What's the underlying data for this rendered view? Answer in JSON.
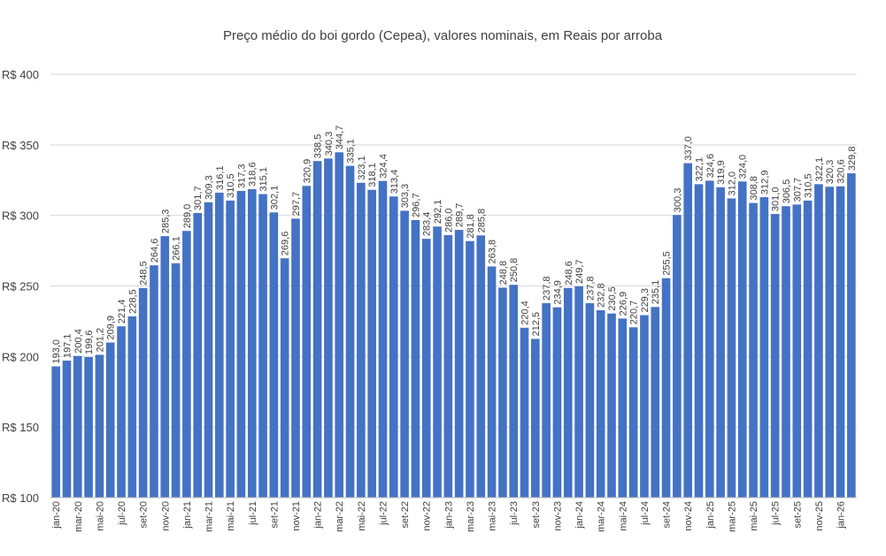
{
  "chart_data": {
    "type": "bar",
    "title": "Preço médio do boi gordo (Cepea), valores nominais, em Reais por arroba",
    "xlabel": "",
    "ylabel": "",
    "ylim": [
      100,
      400
    ],
    "y_ticks": [
      "R$ 100",
      "R$ 150",
      "R$ 200",
      "R$ 250",
      "R$ 300",
      "R$ 350",
      "R$ 400"
    ],
    "y_tick_values": [
      100,
      150,
      200,
      250,
      300,
      350,
      400
    ],
    "grid": "horizontal",
    "legend": "none",
    "bar_color": "#4472c4",
    "categories": [
      "jan-20",
      "fev-20",
      "mar-20",
      "abr-20",
      "mai-20",
      "jun-20",
      "jul-20",
      "ago-20",
      "set-20",
      "out-20",
      "nov-20",
      "dez-20",
      "jan-21",
      "fev-21",
      "mar-21",
      "abr-21",
      "mai-21",
      "jun-21",
      "jul-21",
      "ago-21",
      "set-21",
      "out-21",
      "nov-21",
      "dez-21",
      "jan-22",
      "fev-22",
      "mar-22",
      "abr-22",
      "mai-22",
      "jun-22",
      "jul-22",
      "ago-22",
      "set-22",
      "out-22",
      "nov-22",
      "dez-22",
      "jan-23",
      "fev-23",
      "mar-23",
      "abr-23",
      "mai-23",
      "jun-23",
      "jul-23",
      "ago-23",
      "set-23",
      "out-23",
      "nov-23",
      "dez-23",
      "jan-24",
      "fev-24",
      "mar-24",
      "abr-24",
      "mai-24",
      "jun-24",
      "jul-24",
      "ago-24",
      "set-24",
      "out-24",
      "nov-24",
      "dez-24",
      "jan-25",
      "fev-25",
      "mar-25",
      "abr-25",
      "mai-25",
      "jun-25",
      "jul-25",
      "ago-25",
      "set-25",
      "out-25",
      "nov-25",
      "dez-25",
      "jan-26",
      "fev-26"
    ],
    "visible_x_labels": [
      "jan-20",
      "mar-20",
      "mai-20",
      "jul-20",
      "set-20",
      "nov-20",
      "jan-21",
      "mar-21",
      "mai-21",
      "jul-21",
      "set-21",
      "nov-21",
      "jan-22",
      "mar-22",
      "mai-22",
      "jul-22",
      "set-22",
      "nov-22",
      "jan-23",
      "mar-23",
      "mai-23",
      "jul-23",
      "set-23",
      "nov-23",
      "jan-24",
      "mar-24",
      "mai-24",
      "jul-24",
      "set-24",
      "nov-24",
      "jan-25",
      "mar-25",
      "mai-25",
      "jul-25",
      "set-25",
      "nov-25",
      "jan-26"
    ],
    "values": [
      193.0,
      197.1,
      200.4,
      199.6,
      201.2,
      209.9,
      221.4,
      228.5,
      248.5,
      264.6,
      285.3,
      266.1,
      289.0,
      301.7,
      309.3,
      316.1,
      310.5,
      317.3,
      318.6,
      315.1,
      302.1,
      269.6,
      297.7,
      320.9,
      338.5,
      340.3,
      344.7,
      335.1,
      323.1,
      318.1,
      324.4,
      313.4,
      303.3,
      296.7,
      283.4,
      292.1,
      286.0,
      289.7,
      281.8,
      285.8,
      263.8,
      248.8,
      250.8,
      220.4,
      212.5,
      237.8,
      234.9,
      248.6,
      249.7,
      237.8,
      232.8,
      230.5,
      226.9,
      220.7,
      229.3,
      235.1,
      255.5,
      300.3,
      337.0,
      322.1,
      324.6,
      319.9,
      312.0,
      324.0,
      308.8,
      312.9,
      301.0,
      306.5,
      307.7,
      310.5,
      322.1,
      320.3,
      320.6,
      329.8
    ],
    "data_labels": [
      "193,0",
      "197,1",
      "200,4",
      "199,6",
      "201,2",
      "209,9",
      "221,4",
      "228,5",
      "248,5",
      "264,6",
      "285,3",
      "266,1",
      "289,0",
      "301,7",
      "309,3",
      "316,1",
      "310,5",
      "317,3",
      "318,6",
      "315,1",
      "302,1",
      "269,6",
      "297,7",
      "320,9",
      "338,5",
      "340,3",
      "344,7",
      "335,1",
      "323,1",
      "318,1",
      "324,4",
      "313,4",
      "303,3",
      "296,7",
      "283,4",
      "292,1",
      "286,0",
      "289,7",
      "281,8",
      "285,8",
      "263,8",
      "248,8",
      "250,8",
      "220,4",
      "212,5",
      "237,8",
      "234,9",
      "248,6",
      "249,7",
      "237,8",
      "232,8",
      "230,5",
      "226,9",
      "220,7",
      "229,3",
      "235,1",
      "255,5",
      "300,3",
      "337,0",
      "322,1",
      "324,6",
      "319,9",
      "312,0",
      "324,0",
      "308,8",
      "312,9",
      "301,0",
      "306,5",
      "307,7",
      "310,5",
      "322,1",
      "320,3",
      "320,6",
      "329,8"
    ]
  }
}
